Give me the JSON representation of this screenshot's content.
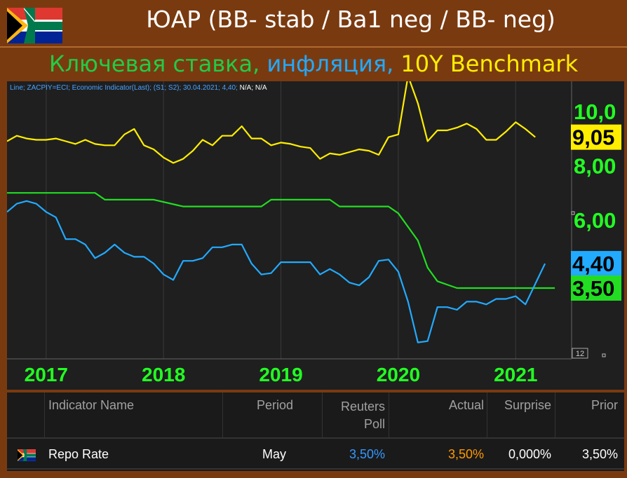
{
  "header": {
    "title": "ЮАР (BB- stab / Ba1 neg / BB- neg)",
    "subtitle_parts": [
      {
        "text": "Ключевая ставка,",
        "color": "#22cc44"
      },
      {
        "text": " инфляция,",
        "color": "#22aaff"
      },
      {
        "text": " 10Y Benchmark",
        "color": "#ffee00"
      }
    ]
  },
  "chart_info": {
    "prefix": "Line; ZACPIY=ECI; Economic Indicator(Last); (S1; S2); 30.04.2021; 4,40;",
    "suffix": " N/A; N/A"
  },
  "chart_data": {
    "type": "line",
    "x_labels": [
      "2017",
      "2018",
      "2019",
      "2020",
      "2021"
    ],
    "y_labels": [
      "10,0",
      "8,00",
      "6,00"
    ],
    "y_range": [
      1.0,
      11.0
    ],
    "x_range": [
      "2016-09",
      "2021-06"
    ],
    "corner_label": "12",
    "badges": [
      {
        "text": "9,05",
        "value": 9.05,
        "color": "#ffee00"
      },
      {
        "text": "4,40",
        "value": 4.4,
        "color": "#22aaff"
      },
      {
        "text": "3,50",
        "value": 3.5,
        "color": "#22dd22"
      }
    ],
    "series": [
      {
        "color": "#ffee00",
        "values": [
          [
            "2016-09",
            8.9
          ],
          [
            "2016-10",
            9.1
          ],
          [
            "2016-11",
            9.0
          ],
          [
            "2016-12",
            8.95
          ],
          [
            "2017-01",
            8.95
          ],
          [
            "2017-02",
            9.0
          ],
          [
            "2017-03",
            8.9
          ],
          [
            "2017-04",
            8.8
          ],
          [
            "2017-05",
            8.95
          ],
          [
            "2017-06",
            8.8
          ],
          [
            "2017-07",
            8.75
          ],
          [
            "2017-08",
            8.75
          ],
          [
            "2017-09",
            9.15
          ],
          [
            "2017-10",
            9.35
          ],
          [
            "2017-11",
            8.75
          ],
          [
            "2017-12",
            8.6
          ],
          [
            "2018-01",
            8.3
          ],
          [
            "2018-02",
            8.1
          ],
          [
            "2018-03",
            8.25
          ],
          [
            "2018-04",
            8.55
          ],
          [
            "2018-05",
            8.95
          ],
          [
            "2018-06",
            8.75
          ],
          [
            "2018-07",
            9.1
          ],
          [
            "2018-08",
            9.1
          ],
          [
            "2018-09",
            9.45
          ],
          [
            "2018-10",
            9.0
          ],
          [
            "2018-11",
            9.0
          ],
          [
            "2018-12",
            8.75
          ],
          [
            "2019-01",
            8.85
          ],
          [
            "2019-02",
            8.8
          ],
          [
            "2019-03",
            8.7
          ],
          [
            "2019-04",
            8.65
          ],
          [
            "2019-05",
            8.25
          ],
          [
            "2019-06",
            8.45
          ],
          [
            "2019-07",
            8.4
          ],
          [
            "2019-08",
            8.5
          ],
          [
            "2019-09",
            8.6
          ],
          [
            "2019-10",
            8.55
          ],
          [
            "2019-11",
            8.4
          ],
          [
            "2019-12",
            9.05
          ],
          [
            "2020-01",
            9.15
          ],
          [
            "2020-02",
            11.3
          ],
          [
            "2020-03",
            10.3
          ],
          [
            "2020-04",
            8.9
          ],
          [
            "2020-05",
            9.3
          ],
          [
            "2020-06",
            9.3
          ],
          [
            "2020-07",
            9.4
          ],
          [
            "2020-08",
            9.55
          ],
          [
            "2020-09",
            9.35
          ],
          [
            "2020-10",
            8.95
          ],
          [
            "2020-11",
            8.95
          ],
          [
            "2020-12",
            9.25
          ],
          [
            "2021-01",
            9.6
          ],
          [
            "2021-02",
            9.35
          ],
          [
            "2021-03",
            9.05
          ]
        ]
      },
      {
        "color": "#22dd22",
        "values": [
          [
            "2016-09",
            7.0
          ],
          [
            "2017-06",
            7.0
          ],
          [
            "2017-07",
            6.75
          ],
          [
            "2017-12",
            6.75
          ],
          [
            "2018-03",
            6.5
          ],
          [
            "2018-11",
            6.5
          ],
          [
            "2018-12",
            6.75
          ],
          [
            "2019-06",
            6.75
          ],
          [
            "2019-07",
            6.5
          ],
          [
            "2019-12",
            6.5
          ],
          [
            "2020-01",
            6.25
          ],
          [
            "2020-03",
            5.25
          ],
          [
            "2020-04",
            4.25
          ],
          [
            "2020-05",
            3.75
          ],
          [
            "2020-07",
            3.5
          ],
          [
            "2021-05",
            3.5
          ]
        ]
      },
      {
        "color": "#22aaff",
        "values": [
          [
            "2016-09",
            6.3
          ],
          [
            "2016-10",
            6.6
          ],
          [
            "2016-11",
            6.7
          ],
          [
            "2016-12",
            6.6
          ],
          [
            "2017-01",
            6.3
          ],
          [
            "2017-02",
            6.1
          ],
          [
            "2017-03",
            5.3
          ],
          [
            "2017-04",
            5.3
          ],
          [
            "2017-05",
            5.1
          ],
          [
            "2017-06",
            4.6
          ],
          [
            "2017-07",
            4.8
          ],
          [
            "2017-08",
            5.1
          ],
          [
            "2017-09",
            4.8
          ],
          [
            "2017-10",
            4.65
          ],
          [
            "2017-11",
            4.65
          ],
          [
            "2017-12",
            4.4
          ],
          [
            "2018-01",
            4.0
          ],
          [
            "2018-02",
            3.8
          ],
          [
            "2018-03",
            4.5
          ],
          [
            "2018-04",
            4.5
          ],
          [
            "2018-05",
            4.6
          ],
          [
            "2018-06",
            5.0
          ],
          [
            "2018-07",
            5.0
          ],
          [
            "2018-08",
            5.1
          ],
          [
            "2018-09",
            5.1
          ],
          [
            "2018-10",
            4.4
          ],
          [
            "2018-11",
            4.0
          ],
          [
            "2018-12",
            4.05
          ],
          [
            "2019-01",
            4.45
          ],
          [
            "2019-02",
            4.45
          ],
          [
            "2019-03",
            4.45
          ],
          [
            "2019-04",
            4.45
          ],
          [
            "2019-05",
            4.0
          ],
          [
            "2019-06",
            4.2
          ],
          [
            "2019-07",
            4.0
          ],
          [
            "2019-08",
            3.7
          ],
          [
            "2019-09",
            3.6
          ],
          [
            "2019-10",
            3.9
          ],
          [
            "2019-11",
            4.5
          ],
          [
            "2019-12",
            4.55
          ],
          [
            "2020-01",
            4.1
          ],
          [
            "2020-02",
            3.0
          ],
          [
            "2020-03",
            1.5
          ],
          [
            "2020-04",
            1.55
          ],
          [
            "2020-05",
            2.8
          ],
          [
            "2020-06",
            2.8
          ],
          [
            "2020-07",
            2.7
          ],
          [
            "2020-08",
            3.0
          ],
          [
            "2020-09",
            3.0
          ],
          [
            "2020-10",
            2.9
          ],
          [
            "2020-11",
            3.1
          ],
          [
            "2020-12",
            3.1
          ],
          [
            "2021-01",
            3.2
          ],
          [
            "2021-02",
            2.9
          ],
          [
            "2021-04",
            4.4
          ]
        ]
      }
    ]
  },
  "table": {
    "headers": [
      "Indicator Name",
      "Period",
      "Reuters Poll",
      "Actual",
      "Surprise",
      "Prior"
    ],
    "row": {
      "indicator": "Repo Rate",
      "period": "May",
      "poll": "3,50%",
      "actual": "3,50%",
      "surprise": "0,000%",
      "prior": "3,50%",
      "poll_color": "#3399ff",
      "actual_color": "#ff9900"
    }
  }
}
